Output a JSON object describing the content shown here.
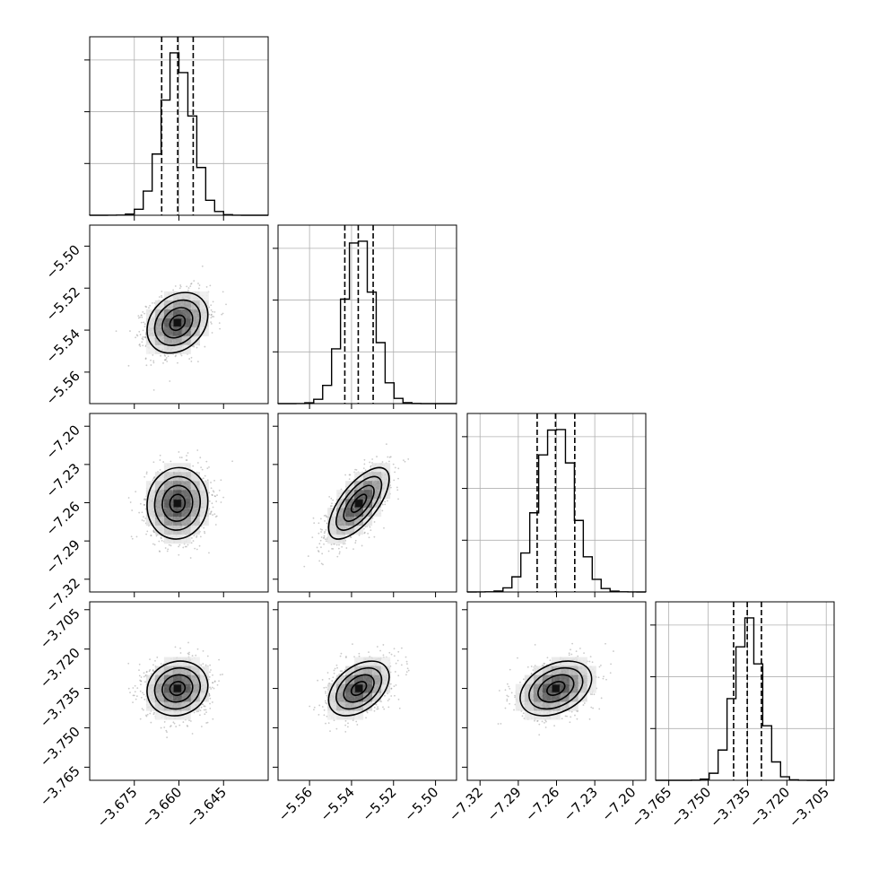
{
  "chart_data": {
    "type": "corner",
    "grid": true,
    "parameters": [
      {
        "range": [
          -3.69,
          -3.63
        ],
        "ticks": [
          -3.675,
          -3.66,
          -3.645
        ],
        "tick_labels": [
          "−3.675",
          "−3.660",
          "−3.645"
        ],
        "mean": -3.6605,
        "sigma": 0.0051,
        "quantiles": [
          -3.6658,
          -3.6604,
          -3.6552
        ]
      },
      {
        "range": [
          -5.575,
          -5.49
        ],
        "ticks": [
          -5.56,
          -5.54,
          -5.52,
          -5.5
        ],
        "tick_labels": [
          "−5.56",
          "−5.54",
          "−5.52",
          "−5.50"
        ],
        "mean": -5.5365,
        "sigma": 0.0072,
        "quantiles": [
          -5.5432,
          -5.5368,
          -5.5297
        ]
      },
      {
        "range": [
          -7.33,
          -7.19
        ],
        "ticks": [
          -7.32,
          -7.29,
          -7.26,
          -7.23,
          -7.2
        ],
        "tick_labels": [
          "−7.32",
          "−7.29",
          "−7.26",
          "−7.23",
          "−7.20"
        ],
        "mean": -7.2605,
        "sigma": 0.014,
        "quantiles": [
          -7.2752,
          -7.2608,
          -7.2457
        ]
      },
      {
        "range": [
          -3.77,
          -3.702
        ],
        "ticks": [
          -3.765,
          -3.75,
          -3.735,
          -3.72,
          -3.705
        ],
        "tick_labels": [
          "−3.765",
          "−3.750",
          "−3.735",
          "−3.720",
          "−3.705"
        ],
        "mean": -3.735,
        "sigma": 0.0052,
        "quantiles": [
          -3.7403,
          -3.7351,
          -3.7297
        ]
      }
    ],
    "correlations": [
      [
        1.0,
        0.25,
        0.05,
        0.1
      ],
      [
        0.25,
        1.0,
        0.68,
        0.42
      ],
      [
        0.05,
        0.68,
        1.0,
        0.35
      ],
      [
        0.1,
        0.42,
        0.35,
        1.0
      ]
    ],
    "histogram_bins": 20,
    "contour_levels_sigma": [
      0.5,
      1.0,
      1.5,
      2.0
    ]
  }
}
